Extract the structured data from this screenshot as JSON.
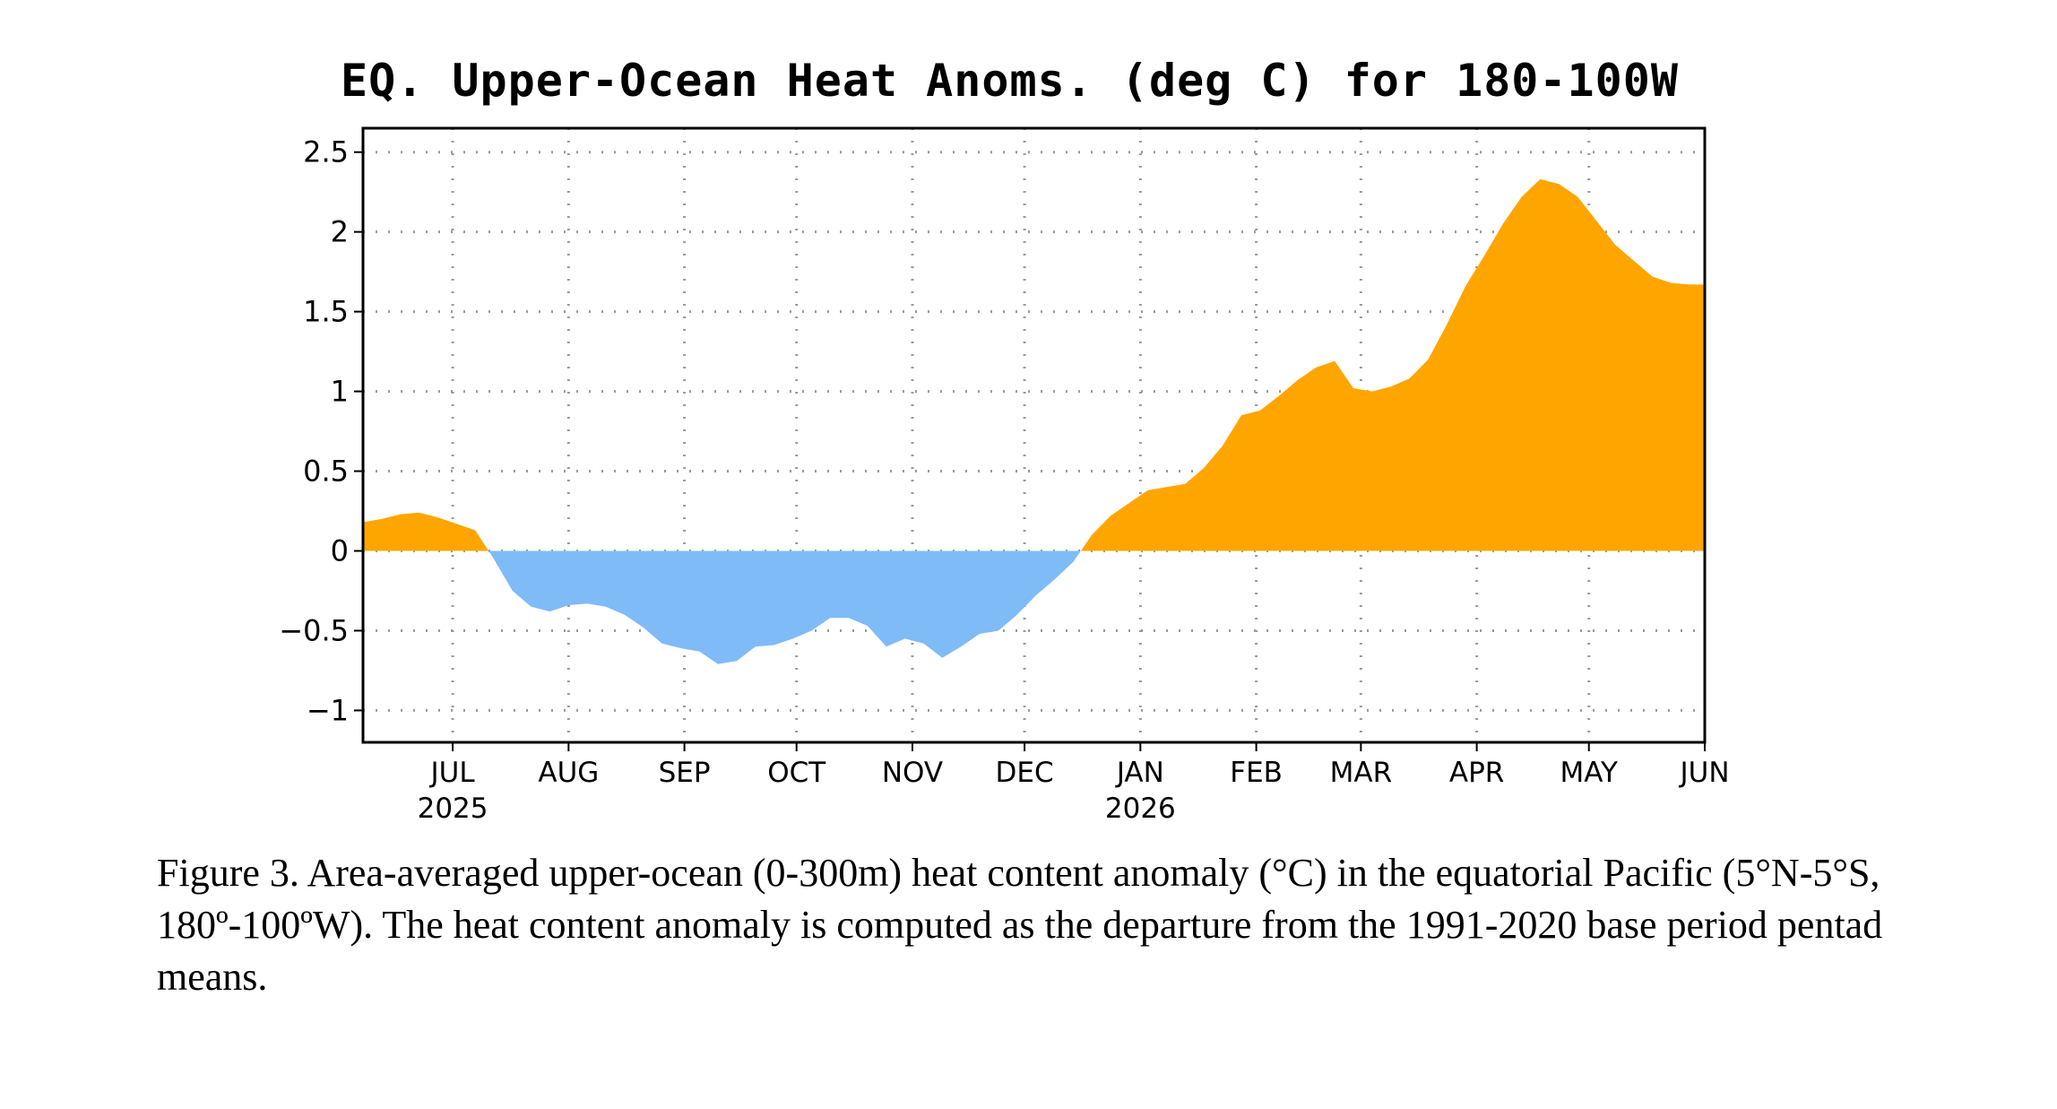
{
  "chart_data": {
    "type": "area",
    "title": "EQ. Upper-Ocean Heat Anoms. (deg C) for 180-100W",
    "xlabel": "",
    "ylabel": "",
    "ylim": [
      -1.2,
      2.65
    ],
    "yticks": [
      2.5,
      2,
      1.5,
      1,
      0.5,
      0,
      -0.5,
      -1
    ],
    "ytick_labels": [
      "2.5",
      "2",
      "1.5",
      "1",
      "0.5",
      "0",
      "−0.5",
      "−1"
    ],
    "xlim": [
      "2025-06-07",
      "2026-06-01"
    ],
    "xticks": [
      {
        "date": "2025-07-01",
        "month": "JUL",
        "year": "2025"
      },
      {
        "date": "2025-08-01",
        "month": "AUG",
        "year": ""
      },
      {
        "date": "2025-09-01",
        "month": "SEP",
        "year": ""
      },
      {
        "date": "2025-10-01",
        "month": "OCT",
        "year": ""
      },
      {
        "date": "2025-11-01",
        "month": "NOV",
        "year": ""
      },
      {
        "date": "2025-12-01",
        "month": "DEC",
        "year": ""
      },
      {
        "date": "2026-01-01",
        "month": "JAN",
        "year": "2026"
      },
      {
        "date": "2026-02-01",
        "month": "FEB",
        "year": ""
      },
      {
        "date": "2026-03-01",
        "month": "MAR",
        "year": ""
      },
      {
        "date": "2026-04-01",
        "month": "APR",
        "year": ""
      },
      {
        "date": "2026-05-01",
        "month": "MAY",
        "year": ""
      },
      {
        "date": "2026-06-01",
        "month": "JUN",
        "year": ""
      }
    ],
    "grid": true,
    "positive_color": "#ffa500",
    "negative_color": "#7fbbf7",
    "series": [
      {
        "x": [
          "2025-06-07",
          "2025-06-12",
          "2025-06-17",
          "2025-06-22",
          "2025-06-27",
          "2025-07-02",
          "2025-07-07",
          "2025-07-12",
          "2025-07-17",
          "2025-07-22",
          "2025-07-27",
          "2025-08-01",
          "2025-08-06",
          "2025-08-11",
          "2025-08-16",
          "2025-08-21",
          "2025-08-26",
          "2025-08-31",
          "2025-09-05",
          "2025-09-10",
          "2025-09-15",
          "2025-09-20",
          "2025-09-25",
          "2025-09-30",
          "2025-10-05",
          "2025-10-10",
          "2025-10-15",
          "2025-10-20",
          "2025-10-25",
          "2025-10-30",
          "2025-11-04",
          "2025-11-09",
          "2025-11-14",
          "2025-11-19",
          "2025-11-24",
          "2025-11-29",
          "2025-12-04",
          "2025-12-09",
          "2025-12-14",
          "2025-12-19",
          "2025-12-24",
          "2025-12-29",
          "2026-01-03",
          "2026-01-08",
          "2026-01-13",
          "2026-01-18",
          "2026-01-23",
          "2026-01-28",
          "2026-02-02",
          "2026-02-07",
          "2026-02-12",
          "2026-02-17",
          "2026-02-22",
          "2026-02-27",
          "2026-03-04",
          "2026-03-09",
          "2026-03-14",
          "2026-03-19",
          "2026-03-24",
          "2026-03-29",
          "2026-04-03",
          "2026-04-08",
          "2026-04-13",
          "2026-04-18",
          "2026-04-23",
          "2026-04-28",
          "2026-05-03",
          "2026-05-08",
          "2026-05-13",
          "2026-05-18",
          "2026-05-23",
          "2026-05-28",
          "2026-06-01"
        ],
        "values": [
          0.18,
          0.2,
          0.23,
          0.24,
          0.21,
          0.17,
          0.13,
          -0.05,
          -0.25,
          -0.35,
          -0.38,
          -0.34,
          -0.33,
          -0.35,
          -0.4,
          -0.48,
          -0.58,
          -0.61,
          -0.63,
          -0.71,
          -0.69,
          -0.6,
          -0.59,
          -0.55,
          -0.5,
          -0.42,
          -0.42,
          -0.47,
          -0.6,
          -0.55,
          -0.58,
          -0.67,
          -0.6,
          -0.52,
          -0.5,
          -0.4,
          -0.28,
          -0.18,
          -0.07,
          0.1,
          0.22,
          0.3,
          0.38,
          0.4,
          0.42,
          0.52,
          0.66,
          0.85,
          0.88,
          0.97,
          1.07,
          1.15,
          1.19,
          1.02,
          1.0,
          1.03,
          1.08,
          1.2,
          1.42,
          1.66,
          1.85,
          2.05,
          2.22,
          2.33,
          2.3,
          2.22,
          2.07,
          1.92,
          1.82,
          1.72,
          1.68,
          1.67,
          1.67
        ]
      }
    ]
  },
  "caption": "Figure 3. Area-averaged upper-ocean (0-300m) heat content anomaly (°C) in the equatorial Pacific (5°N-5°S, 180º-100ºW). The heat content anomaly is computed as the departure from the 1991-2020 base period pentad means."
}
